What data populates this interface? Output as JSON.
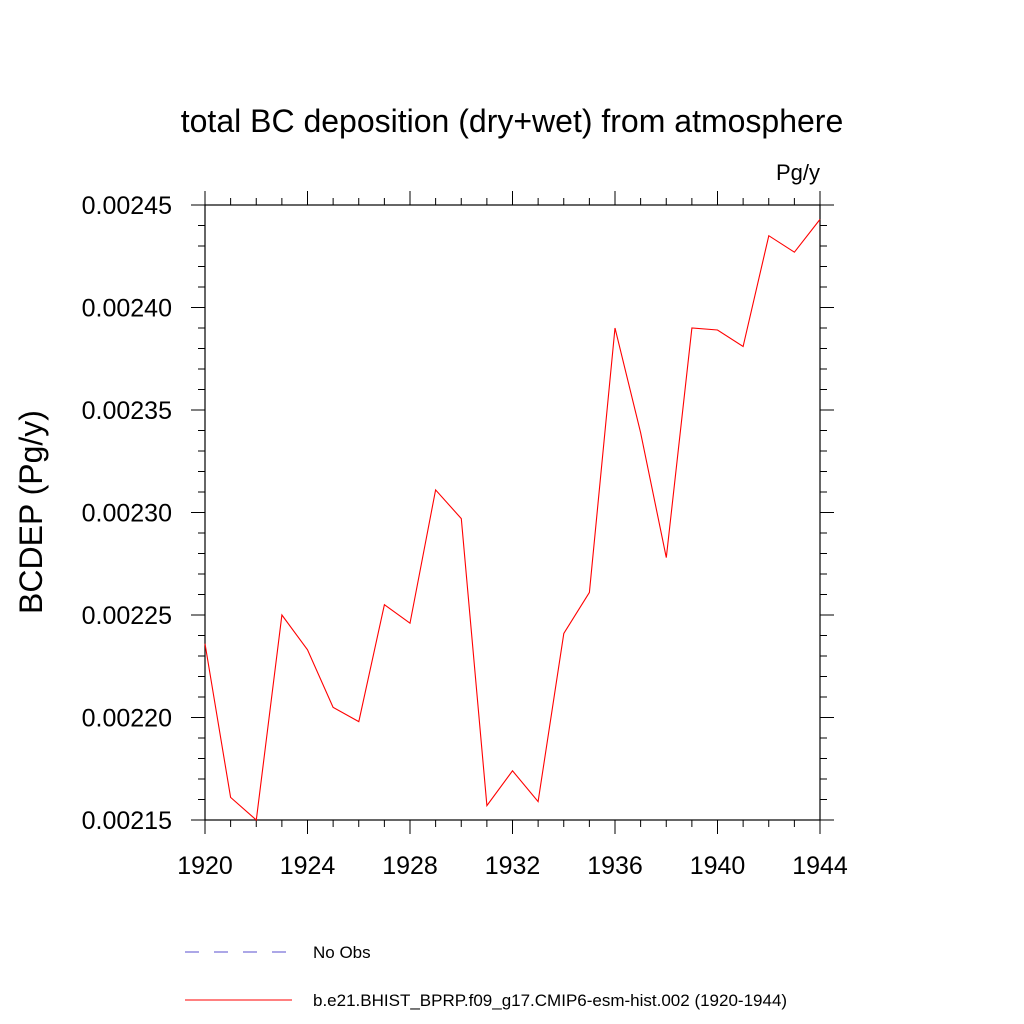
{
  "chart_data": {
    "type": "line",
    "title": "total BC deposition (dry+wet) from atmosphere",
    "units_label": "Pg/y",
    "xlabel": "",
    "ylabel": "BCDEP  (Pg/y)",
    "xlim": [
      1920,
      1944
    ],
    "ylim": [
      0.00215,
      0.00245
    ],
    "x_ticks": [
      1920,
      1924,
      1928,
      1932,
      1936,
      1940,
      1944
    ],
    "x_tick_labels": [
      "1920",
      "1924",
      "1928",
      "1932",
      "1936",
      "1940",
      "1944"
    ],
    "y_ticks": [
      0.00215,
      0.0022,
      0.00225,
      0.0023,
      0.00235,
      0.0024,
      0.00245
    ],
    "y_tick_labels": [
      "0.00215",
      "0.00220",
      "0.00225",
      "0.00230",
      "0.00235",
      "0.00240",
      "0.00245"
    ],
    "grid": false,
    "legend_position": "bottom",
    "series": [
      {
        "name": "b.e21.BHIST_BPRP.f09_g17.CMIP6-esm-hist.002 (1920-1944)",
        "color": "#ff0000",
        "style": "solid",
        "x": [
          1920,
          1921,
          1922,
          1923,
          1924,
          1925,
          1926,
          1927,
          1928,
          1929,
          1930,
          1931,
          1932,
          1933,
          1934,
          1935,
          1936,
          1937,
          1938,
          1939,
          1940,
          1941,
          1942,
          1943,
          1944
        ],
        "y": [
          0.002236,
          0.002161,
          0.00215,
          0.00225,
          0.002233,
          0.002205,
          0.002198,
          0.002255,
          0.002246,
          0.002311,
          0.002297,
          0.002157,
          0.002174,
          0.002159,
          0.002241,
          0.002261,
          0.00239,
          0.002339,
          0.002278,
          0.00239,
          0.002389,
          0.002381,
          0.002435,
          0.002427,
          0.002443
        ]
      }
    ],
    "legend_entries": [
      {
        "name": "No Obs",
        "color": "#5a4fcf",
        "style": "dashed"
      },
      {
        "name": "b.e21.BHIST_BPRP.f09_g17.CMIP6-esm-hist.002 (1920-1944)",
        "color": "#ff0000",
        "style": "solid"
      }
    ]
  }
}
